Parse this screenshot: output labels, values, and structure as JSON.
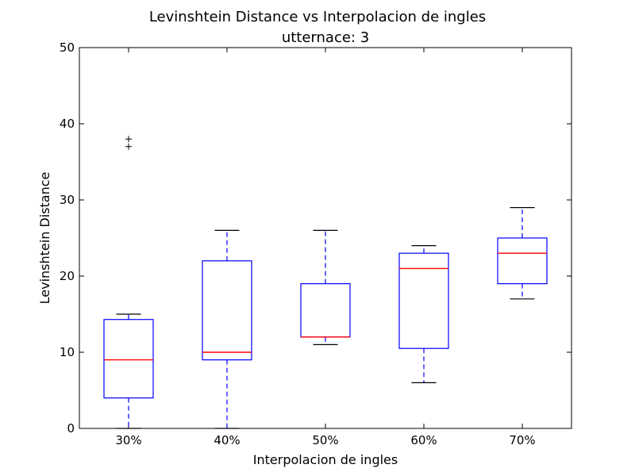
{
  "chart_data": {
    "type": "box",
    "title": "Levinshtein Distance vs Interpolacion de ingles",
    "subtitle": "utternace: 3",
    "xlabel": "Interpolacion de ingles",
    "ylabel": "Levinshtein Distance",
    "ylim": [
      0,
      50
    ],
    "yticks": [
      0,
      10,
      20,
      30,
      40,
      50
    ],
    "grid": false,
    "categories": [
      "30%",
      "40%",
      "50%",
      "60%",
      "70%"
    ],
    "boxes": [
      {
        "category": "30%",
        "whisker_low": 0,
        "q1": 4,
        "median": 9,
        "q3": 14.3,
        "whisker_high": 15,
        "outliers": [
          37,
          38
        ]
      },
      {
        "category": "40%",
        "whisker_low": 0,
        "q1": 9,
        "median": 10,
        "q3": 22,
        "whisker_high": 26,
        "outliers": []
      },
      {
        "category": "50%",
        "whisker_low": 11,
        "q1": 12,
        "median": 12,
        "q3": 19,
        "whisker_high": 26,
        "outliers": []
      },
      {
        "category": "60%",
        "whisker_low": 6,
        "q1": 10.5,
        "median": 21,
        "q3": 23,
        "whisker_high": 24,
        "outliers": []
      },
      {
        "category": "70%",
        "whisker_low": 17,
        "q1": 19,
        "median": 23,
        "q3": 25,
        "whisker_high": 29,
        "outliers": []
      }
    ],
    "colors": {
      "box": "#0000ff",
      "median": "#ff0000",
      "whisker": "#0000ff",
      "cap": "#000000",
      "outlier": "#000000"
    }
  }
}
